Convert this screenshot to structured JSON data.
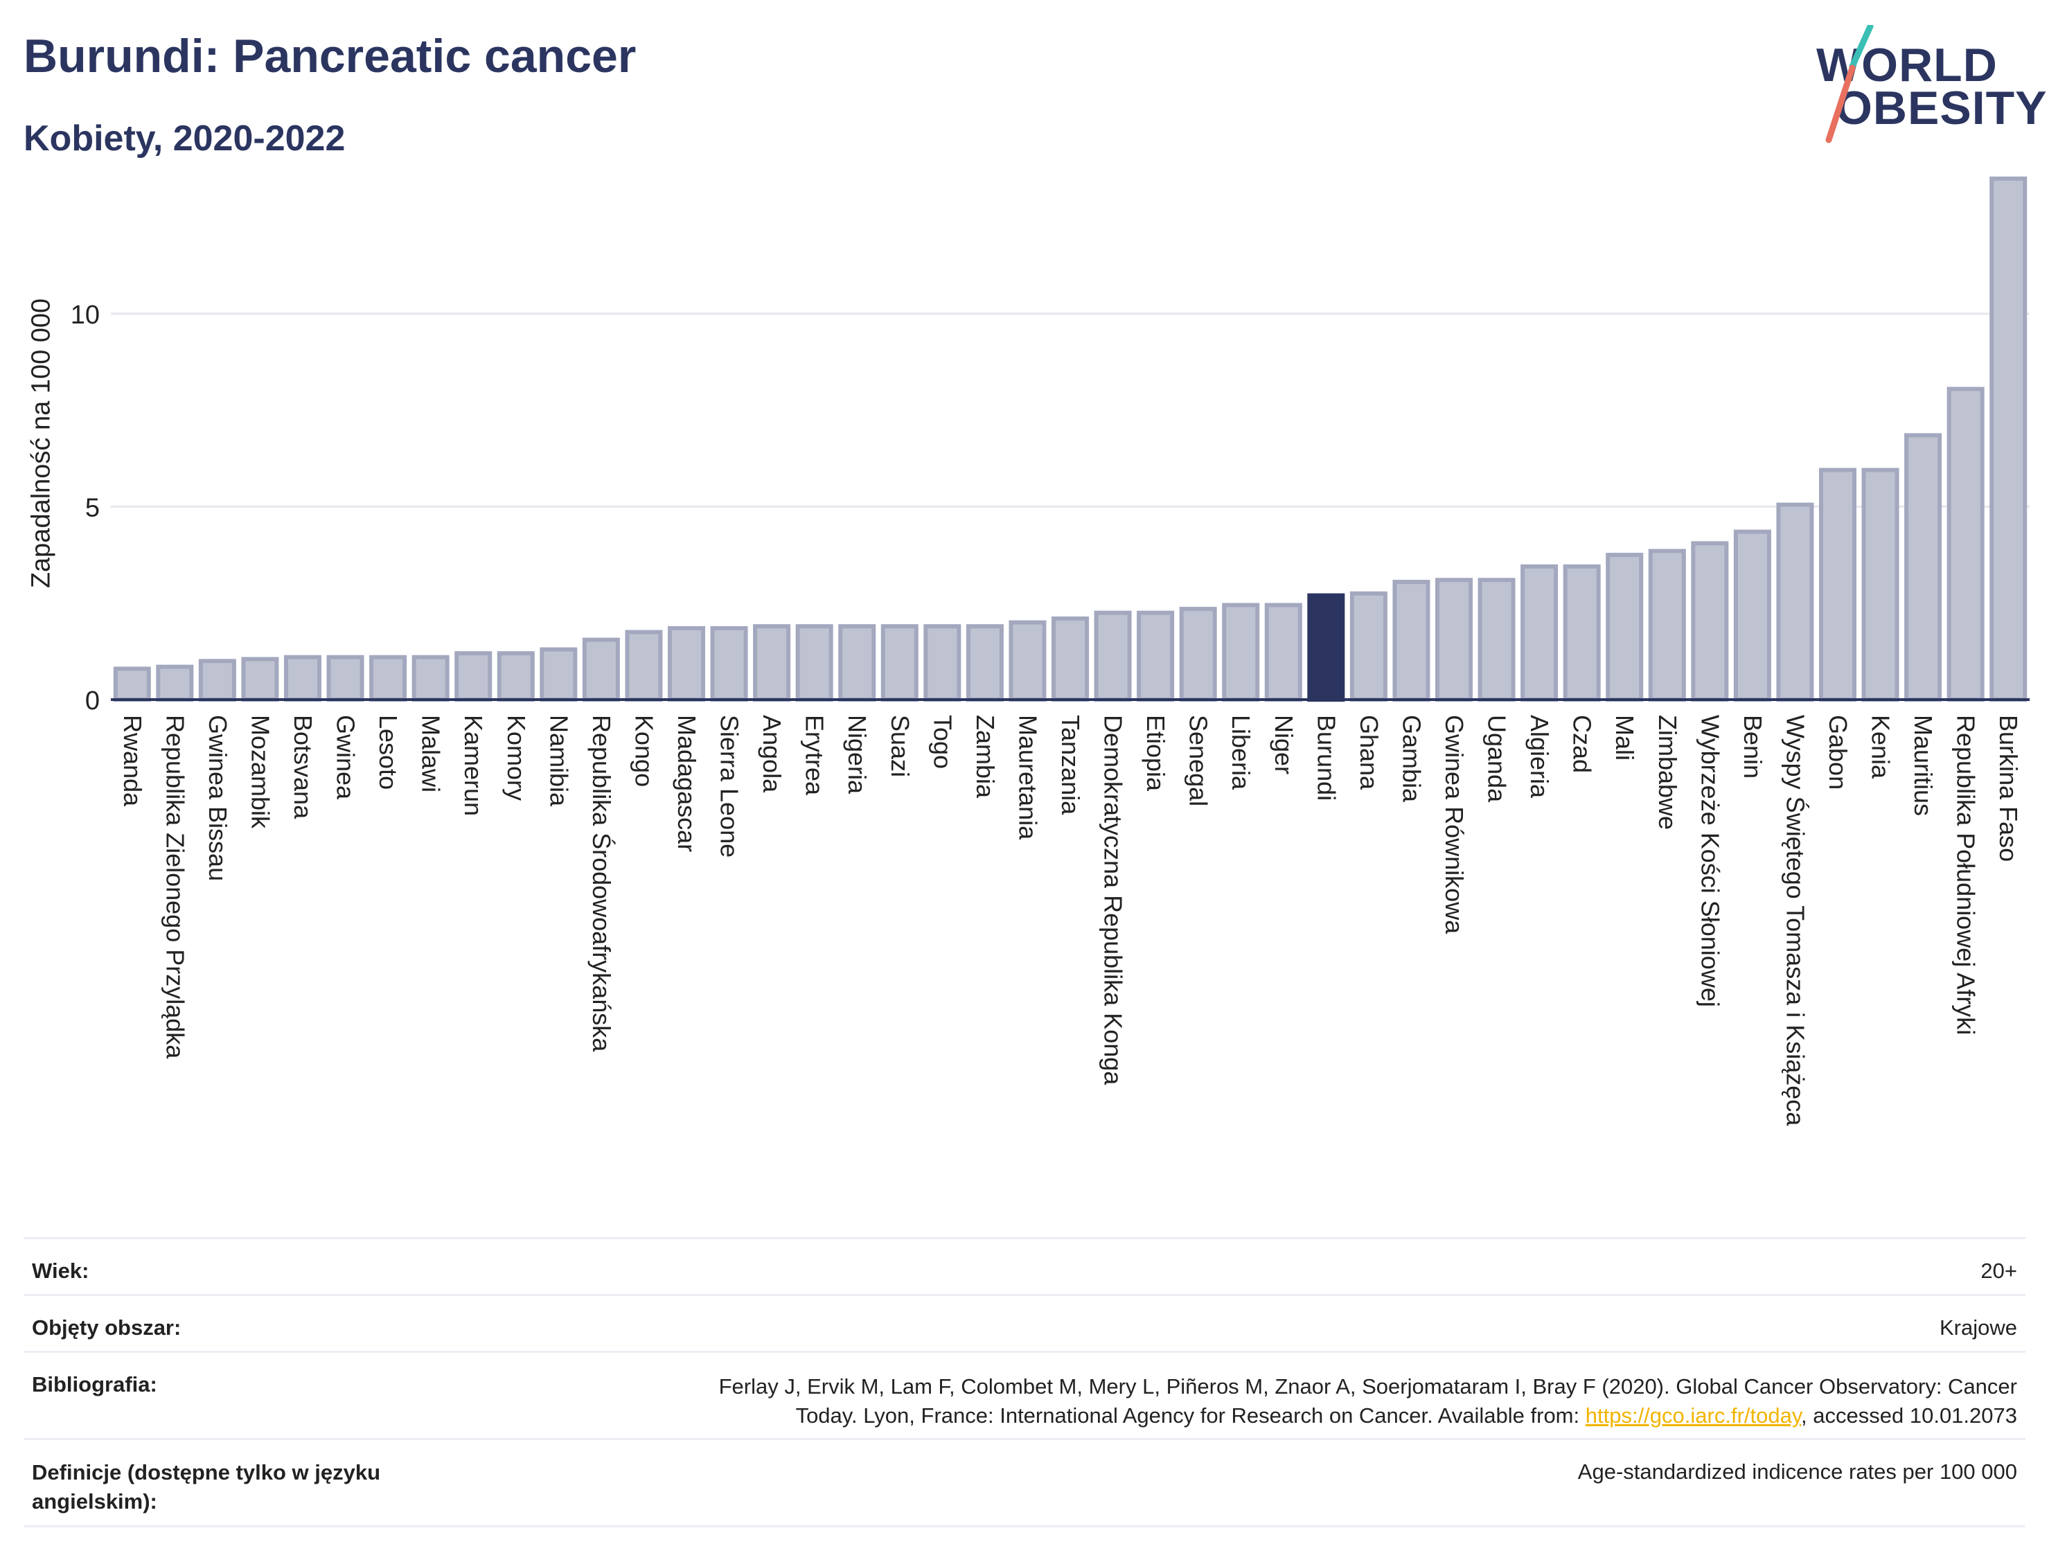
{
  "header": {
    "title": "Burundi: Pancreatic cancer",
    "subtitle": "Kobiety, 2020-2022",
    "logo_line1": "WORLD",
    "logo_line2": "OBESITY"
  },
  "chart_data": {
    "type": "bar",
    "ylabel": "Zapadalność na 100 000",
    "ylim": [
      0,
      14
    ],
    "yticks": [
      0,
      5,
      10
    ],
    "grid": true,
    "highlight": "Burundi",
    "colors": {
      "bar": "#bfc3d1",
      "bar_stroke": "#a3a8bf",
      "highlight": "#2b3560",
      "grid": "#e6e8ee"
    },
    "categories": [
      "Rwanda",
      "Republika Zielonego Przylądka",
      "Gwinea Bissau",
      "Mozambik",
      "Botsvana",
      "Gwinea",
      "Lesoto",
      "Malawi",
      "Kamerun",
      "Komory",
      "Namibia",
      "Republika Środowoafrykańska",
      "Kongo",
      "Madagascar",
      "Sierra Leone",
      "Angola",
      "Erytrea",
      "Nigeria",
      "Suazi",
      "Togo",
      "Zambia",
      "Mauretania",
      "Tanzania",
      "Demokratyczna Republika Konga",
      "Etiopia",
      "Senegal",
      "Liberia",
      "Niger",
      "Burundi",
      "Ghana",
      "Gambia",
      "Gwinea Równikowa",
      "Uganda",
      "Algieria",
      "Czad",
      "Mali",
      "Zimbabwe",
      "Wybrzeże Kości Słoniowej",
      "Benin",
      "Wyspy Świętego Tomasza i Książęca",
      "Gabon",
      "Kenia",
      "Mauritius",
      "Republika Południowej Afryki",
      "Burkina Faso"
    ],
    "values": [
      0.8,
      0.85,
      1.0,
      1.05,
      1.1,
      1.1,
      1.1,
      1.1,
      1.2,
      1.2,
      1.3,
      1.55,
      1.75,
      1.85,
      1.85,
      1.9,
      1.9,
      1.9,
      1.9,
      1.9,
      1.9,
      2.0,
      2.1,
      2.25,
      2.25,
      2.35,
      2.45,
      2.45,
      2.7,
      2.75,
      3.05,
      3.1,
      3.1,
      3.45,
      3.45,
      3.75,
      3.85,
      4.05,
      4.35,
      5.05,
      5.95,
      5.95,
      6.85,
      8.05,
      13.5
    ]
  },
  "info": {
    "age_label": "Wiek:",
    "age_value": "20+",
    "coverage_label": "Objęty obszar:",
    "coverage_value": "Krajowe",
    "bib_label": "Bibliografia:",
    "bib_line1": "Ferlay J, Ervik M, Lam F, Colombet M, Mery L, Piñeros M, Znaor A, Soerjomataram I, Bray F (2020). Global Cancer Observatory: Cancer",
    "bib_line2_pre": "Today. Lyon, France: International Agency for Research on Cancer. Available from: ",
    "bib_link": "https://gco.iarc.fr/today",
    "bib_line2_post": ", accessed 10.01.2073",
    "def_label_line1": "Definicje (dostępne tylko w języku",
    "def_label_line2": "angielskim):",
    "def_value": "Age-standardized indicence rates per 100 000"
  }
}
